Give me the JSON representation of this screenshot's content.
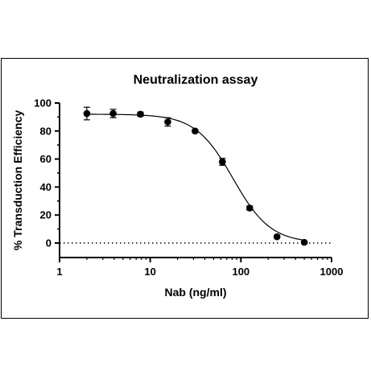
{
  "chart_data": {
    "type": "scatter",
    "title": "Neutralization assay",
    "xlabel": "Nab (ng/ml)",
    "ylabel": "% Transduction Efficiency",
    "x_scale": "log",
    "xlim": [
      1,
      1000
    ],
    "ylim": [
      0,
      100
    ],
    "x_ticks": [
      "1",
      "10",
      "100",
      "1000"
    ],
    "y_ticks": [
      "0",
      "20",
      "40",
      "60",
      "80",
      "100"
    ],
    "points": [
      {
        "x": 2,
        "y": 92.5,
        "err": 4.5
      },
      {
        "x": 3.9,
        "y": 92.5,
        "err": 3
      },
      {
        "x": 7.8,
        "y": 92,
        "err": 1.5
      },
      {
        "x": 15.6,
        "y": 86.5,
        "err": 3
      },
      {
        "x": 31.25,
        "y": 80,
        "err": 1
      },
      {
        "x": 62.5,
        "y": 58,
        "err": 2.5
      },
      {
        "x": 125,
        "y": 25,
        "err": 1.5
      },
      {
        "x": 250,
        "y": 4.5,
        "err": 1
      },
      {
        "x": 500,
        "y": 0.5,
        "err": 0.5
      }
    ],
    "fit_curve": {
      "model": "4PL",
      "top": 92,
      "bottom": 0,
      "ec50": 82,
      "hill": 2.1
    },
    "reference_line": {
      "y": 0,
      "style": "dotted"
    },
    "grid": false,
    "color": "#000000"
  }
}
